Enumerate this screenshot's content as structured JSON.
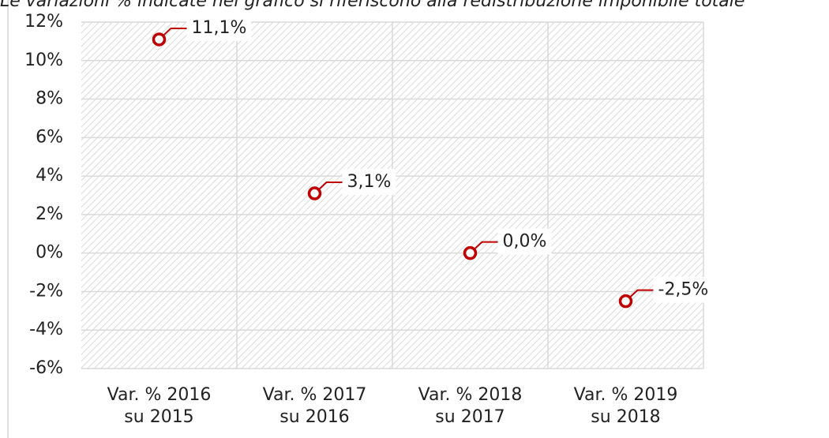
{
  "chart_data": {
    "type": "scatter",
    "title": "Le variazioni % indicate nel grafico si riferiscono alla redistribuzione imponibile totale",
    "categories": [
      "Var. % 2016 su 2015",
      "Var. % 2017 su 2016",
      "Var. % 2018 su 2017",
      "Var. % 2019 su 2018"
    ],
    "values": [
      11.1,
      3.1,
      0.0,
      -2.5
    ],
    "value_labels": [
      "11,1%",
      "3,1%",
      "0,0%",
      "-2,5%"
    ],
    "color": "#c00000",
    "ylim": [
      -6,
      12
    ],
    "yticks": [
      {
        "value": -6,
        "label": "-6%"
      },
      {
        "value": -4,
        "label": "-4%"
      },
      {
        "value": -2,
        "label": "-2%"
      },
      {
        "value": 0,
        "label": "0%"
      },
      {
        "value": 2,
        "label": "2%"
      },
      {
        "value": 4,
        "label": "4%"
      },
      {
        "value": 6,
        "label": "6%"
      },
      {
        "value": 8,
        "label": "8%"
      },
      {
        "value": 10,
        "label": "10%"
      },
      {
        "value": 12,
        "label": "12%"
      }
    ],
    "grid": true
  }
}
